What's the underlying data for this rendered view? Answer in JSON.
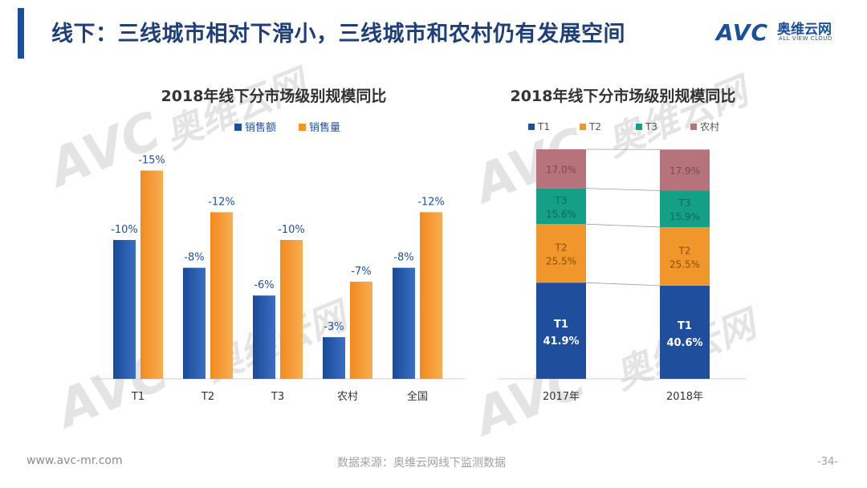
{
  "header": {
    "title": "线下：三线城市相对下滑小，三线城市和农村仍有发展空间",
    "logo_en": "AVC",
    "logo_cn": "奥维云网",
    "logo_sub": "ALL VIEW CLOUD"
  },
  "watermark": {
    "brand": "AVC",
    "cn": "奥维云网",
    "en": "ALL VIEW CLOUD"
  },
  "chart_data": [
    {
      "type": "bar",
      "title": "2018年线下分市场级别规模同比",
      "categories": [
        "T1",
        "T2",
        "T3",
        "农村",
        "全国"
      ],
      "series": [
        {
          "name": "销售额",
          "values": [
            -10,
            -8,
            -6,
            -3,
            -8
          ],
          "labels": [
            "-10%",
            "-8%",
            "-6%",
            "-3%",
            "-8%"
          ],
          "color": "#1f4e9c"
        },
        {
          "name": "销售量",
          "values": [
            -15,
            -12,
            -10,
            -7,
            -12
          ],
          "labels": [
            "-15%",
            "-12%",
            "-10%",
            "-7%",
            "-12%"
          ],
          "color": "#f0962a"
        }
      ],
      "legend": "top",
      "xlabel": "",
      "ylabel": ""
    },
    {
      "type": "bar",
      "stacked": true,
      "title": "2018年线下分市场级别规模同比",
      "categories": [
        "2017年",
        "2018年"
      ],
      "series": [
        {
          "name": "T1",
          "values": [
            41.9,
            40.6
          ],
          "labels": [
            "41.9%",
            "40.6%"
          ],
          "color": "#1f4e9c"
        },
        {
          "name": "T2",
          "values": [
            25.5,
            25.5
          ],
          "labels": [
            "25.5%",
            "25.5%"
          ],
          "color": "#f0962a"
        },
        {
          "name": "T3",
          "values": [
            15.6,
            15.9
          ],
          "labels": [
            "15.6%",
            "15.9%"
          ],
          "color": "#14a086"
        },
        {
          "name": "农村",
          "values": [
            17.0,
            17.9
          ],
          "labels": [
            "17.0%",
            "17.9%"
          ],
          "color": "#b6737c"
        }
      ],
      "legend": "top",
      "ylim": [
        0,
        100
      ]
    }
  ],
  "footer": {
    "website": "www.avc-mr.com",
    "source": "数据来源：奥维云网线下监测数据",
    "page": "-34-"
  }
}
